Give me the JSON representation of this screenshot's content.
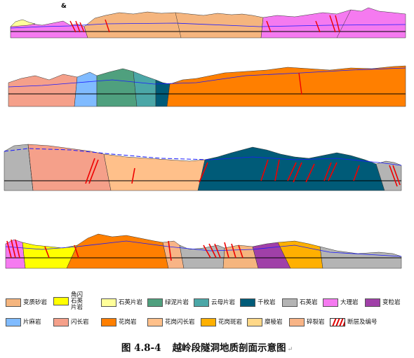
{
  "figure_caption": {
    "number": "图 4.8-4",
    "title": "越岭段隧洞地质剖面示意图",
    "return_mark": "↵"
  },
  "top_marker": "&",
  "legend": [
    {
      "key": "phyllitic_sandstone",
      "label": "变质砂岩",
      "color": "#F5B57E"
    },
    {
      "key": "amphibole_schist",
      "label": "角闪石英片岩",
      "color": "#FFFF00"
    },
    {
      "key": "quartz_schist",
      "label": "石英片岩",
      "color": "#FFFF9A"
    },
    {
      "key": "chlorite_schist",
      "label": "绿泥片岩",
      "color": "#4FA07E"
    },
    {
      "key": "mica_schist",
      "label": "云母片岩",
      "color": "#4BA7A7"
    },
    {
      "key": "phyllite",
      "label": "千枚岩",
      "color": "#005B78"
    },
    {
      "key": "quartzite",
      "label": "石英岩",
      "color": "#B4B4B4"
    },
    {
      "key": "marble",
      "label": "大理岩",
      "color": "#F57AF0"
    },
    {
      "key": "metagranite",
      "label": "变粒岩",
      "color": "#A040A8"
    },
    {
      "key": "gneiss",
      "label": "片麻岩",
      "color": "#80BBFF"
    },
    {
      "key": "diorite",
      "label": "闪长岩",
      "color": "#F5A08A"
    },
    {
      "key": "granite",
      "label": "花岗岩",
      "color": "#FF7F00"
    },
    {
      "key": "granodiorite",
      "label": "花岗闪长岩",
      "color": "#FFC08A"
    },
    {
      "key": "granite_porphyry",
      "label": "花岗斑岩",
      "color": "#FFB000"
    },
    {
      "key": "mylonite",
      "label": "糜棱岩",
      "color": "#FFD888"
    },
    {
      "key": "cataclasite",
      "label": "碎裂岩",
      "color": "#F8B486"
    },
    {
      "key": "fault",
      "label": "断层及编号",
      "color": "#FF0000"
    }
  ]
}
